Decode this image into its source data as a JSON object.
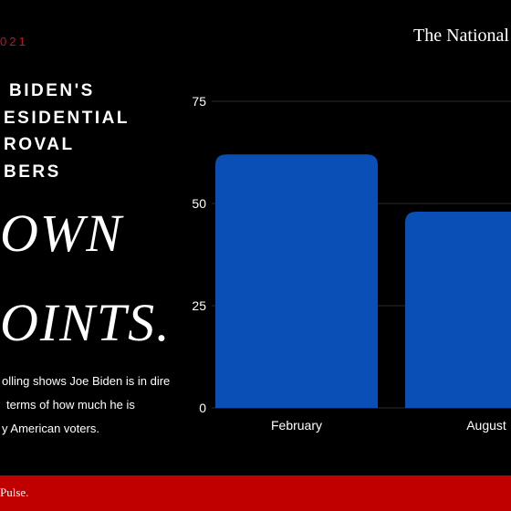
{
  "date_label": "021",
  "brand": "The National",
  "headline_lines": [
    "BIDEN'S",
    "ESIDENTIAL",
    "ROVAL",
    "BERS"
  ],
  "big_lines": [
    "OWN",
    "OINTS."
  ],
  "body_lines": [
    "olling shows Joe Biden is in dire",
    "terms of how much he is",
    "y American voters."
  ],
  "footer": "Pulse.",
  "colors": {
    "accent_red": "#c0161a",
    "footer_red": "#c00000",
    "bar_blue": "#0a4fb5",
    "background": "#000000"
  },
  "chart_data": {
    "type": "bar",
    "categories": [
      "February",
      "August"
    ],
    "values": [
      62,
      48
    ],
    "title": "",
    "xlabel": "",
    "ylabel": "",
    "ylim": [
      0,
      75
    ],
    "yticks": [
      0,
      25,
      50,
      75
    ],
    "grid": true
  }
}
